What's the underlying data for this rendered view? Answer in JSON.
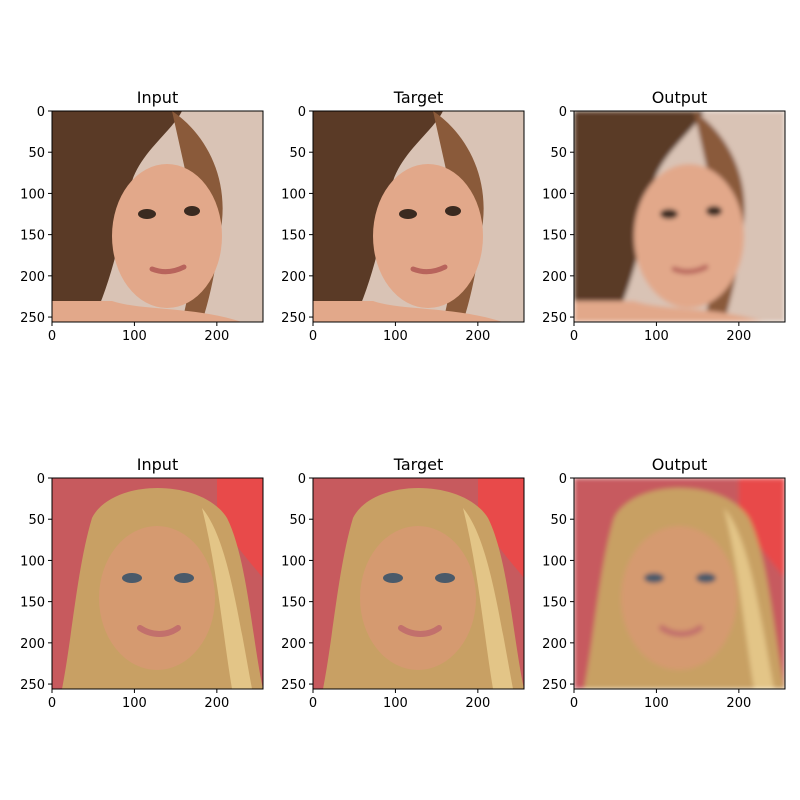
{
  "figure": {
    "panels": [
      {
        "title": "Input",
        "row": 0,
        "col": 0,
        "palette": "brunette",
        "variant": "sharp"
      },
      {
        "title": "Target",
        "row": 0,
        "col": 1,
        "palette": "brunette",
        "variant": "sharp"
      },
      {
        "title": "Output",
        "row": 0,
        "col": 2,
        "palette": "brunette",
        "variant": "smooth"
      },
      {
        "title": "Input",
        "row": 1,
        "col": 0,
        "palette": "blonde",
        "variant": "sharp"
      },
      {
        "title": "Target",
        "row": 1,
        "col": 1,
        "palette": "blonde",
        "variant": "sharp"
      },
      {
        "title": "Output",
        "row": 1,
        "col": 2,
        "palette": "blonde",
        "variant": "smooth"
      }
    ],
    "x_ticks": [
      "0",
      "100",
      "200"
    ],
    "x_tick_values": [
      0,
      100,
      200
    ],
    "y_ticks": [
      "0",
      "50",
      "100",
      "150",
      "200",
      "250"
    ],
    "y_tick_values": [
      0,
      50,
      100,
      150,
      200,
      250
    ],
    "image_extent": [
      0,
      256
    ]
  },
  "palettes": {
    "brunette": {
      "bg": "#d9c3b5",
      "hair": "#5a3a26",
      "hair_light": "#8a5a3a",
      "skin": "#e2a88a",
      "lip": "#b8645c"
    },
    "blonde": {
      "bg": "#c75a5e",
      "hair": "#c8a064",
      "hair_light": "#e3c587",
      "skin": "#d59a70",
      "lip": "#c2706c"
    }
  }
}
